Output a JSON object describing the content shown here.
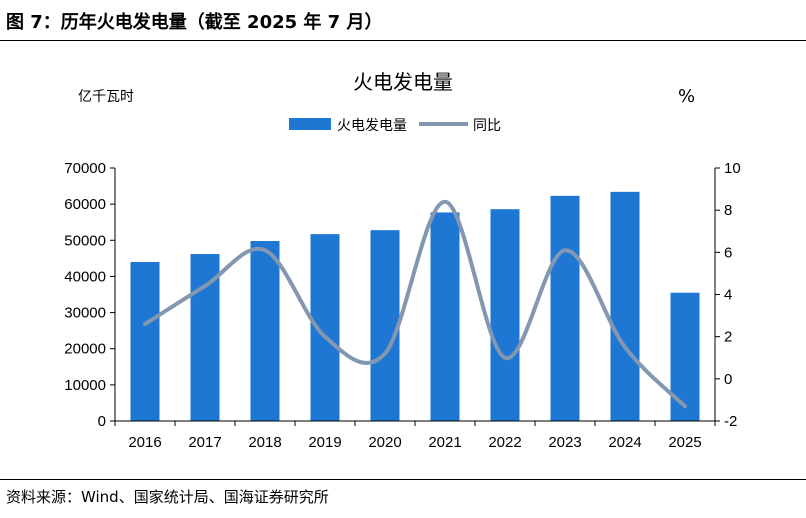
{
  "figure_title": "图 7：历年火电发电量（截至 2025 年 7 月）",
  "source": "资料来源：Wind、国家统计局、国海证券研究所",
  "colors": {
    "bar": "#1f77d4",
    "line": "#8497b0",
    "axis": "#000000"
  },
  "chart_data": {
    "type": "bar",
    "title": "火电发电量",
    "left_unit": "亿千瓦时",
    "right_unit": "%",
    "categories": [
      "2016",
      "2017",
      "2018",
      "2019",
      "2020",
      "2021",
      "2022",
      "2023",
      "2024",
      "2025"
    ],
    "series": [
      {
        "name": "火电发电量",
        "type": "bar",
        "axis": "left",
        "values": [
          44000,
          46200,
          49800,
          51700,
          52800,
          57700,
          58600,
          62300,
          63400,
          35500
        ]
      },
      {
        "name": "同比",
        "type": "line",
        "axis": "right",
        "smooth": true,
        "values": [
          2.6,
          4.4,
          6.1,
          2.0,
          1.2,
          8.4,
          1.0,
          6.1,
          1.5,
          -1.3
        ]
      }
    ],
    "ylim_left": [
      0,
      70000
    ],
    "yticks_left": [
      "0",
      "10000",
      "20000",
      "30000",
      "40000",
      "50000",
      "60000",
      "70000"
    ],
    "ylim_right": [
      -2,
      10
    ],
    "yticks_right": [
      "-2",
      "0",
      "2",
      "4",
      "6",
      "8",
      "10"
    ],
    "legend": "top-center"
  }
}
